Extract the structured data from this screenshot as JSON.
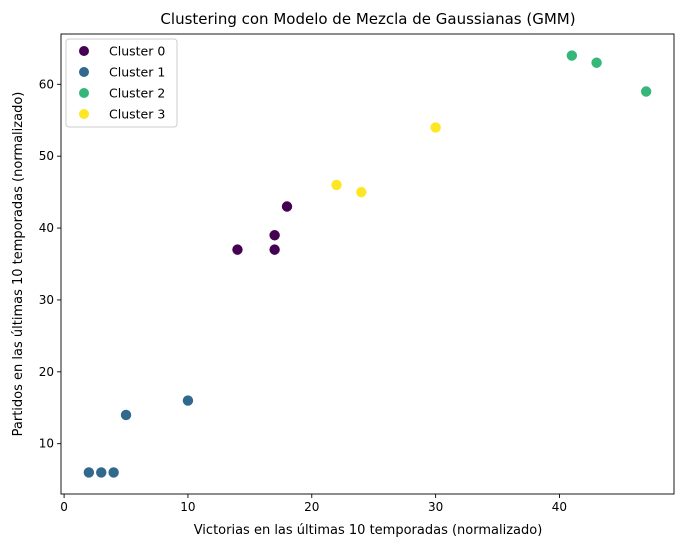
{
  "chart_data": {
    "type": "scatter",
    "title": "Clustering con Modelo de Mezcla de Gaussianas (GMM)",
    "xlabel": "Victorias en las últimas 10 temporadas (normalizado)",
    "ylabel": "Partidos en las últimas 10 temporadas (normalizado)",
    "xlim": [
      -0.25,
      49.25
    ],
    "ylim": [
      3,
      67
    ],
    "xticks": [
      0,
      10,
      20,
      30,
      40
    ],
    "yticks": [
      10,
      20,
      30,
      40,
      50,
      60
    ],
    "grid": false,
    "legend_position": "top-left",
    "series": [
      {
        "name": "Cluster 0",
        "color": "#440154",
        "points": [
          [
            14,
            37
          ],
          [
            17,
            39
          ],
          [
            17,
            37
          ],
          [
            18,
            43
          ]
        ]
      },
      {
        "name": "Cluster 1",
        "color": "#31688e",
        "points": [
          [
            2,
            6
          ],
          [
            3,
            6
          ],
          [
            4,
            6
          ],
          [
            5,
            14
          ],
          [
            10,
            16
          ]
        ]
      },
      {
        "name": "Cluster 2",
        "color": "#35b779",
        "points": [
          [
            41,
            64
          ],
          [
            43,
            63
          ],
          [
            47,
            59
          ]
        ]
      },
      {
        "name": "Cluster 3",
        "color": "#fde725",
        "points": [
          [
            22,
            46
          ],
          [
            24,
            45
          ],
          [
            30,
            54
          ]
        ]
      }
    ]
  }
}
